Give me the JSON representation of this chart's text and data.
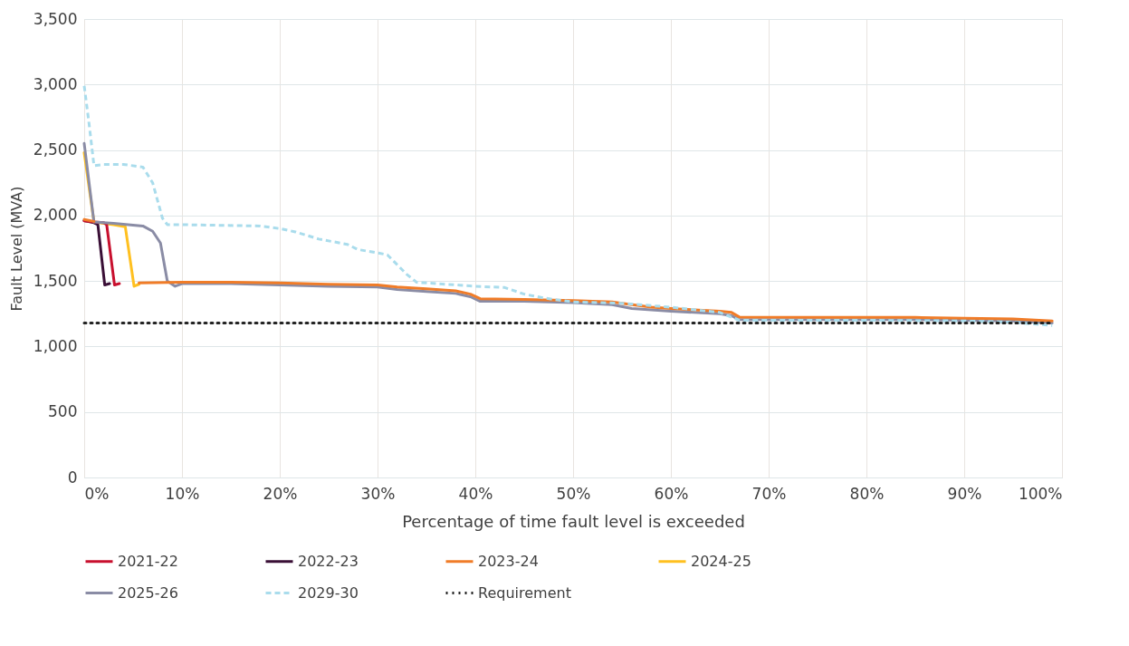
{
  "chart_data": {
    "type": "line",
    "xlabel": "Percentage of time fault level is exceeded",
    "ylabel": "Fault Level (MVA)",
    "xlim": [
      0,
      100
    ],
    "xticks": [
      {
        "value": 0,
        "label": "0%"
      },
      {
        "value": 10,
        "label": "10%"
      },
      {
        "value": 20,
        "label": "20%"
      },
      {
        "value": 30,
        "label": "30%"
      },
      {
        "value": 40,
        "label": "40%"
      },
      {
        "value": 50,
        "label": "50%"
      },
      {
        "value": 60,
        "label": "60%"
      },
      {
        "value": 70,
        "label": "70%"
      },
      {
        "value": 80,
        "label": "80%"
      },
      {
        "value": 90,
        "label": "90%"
      },
      {
        "value": 100,
        "label": "100%"
      }
    ],
    "ylim": [
      0,
      3500
    ],
    "yticks": [
      0,
      500,
      {
        "value": 1000,
        "label": "1,000"
      },
      {
        "value": 1500,
        "label": "1,500"
      },
      {
        "value": 2000,
        "label": "2,000"
      },
      {
        "value": 2500,
        "label": "2,500"
      },
      {
        "value": 3000,
        "label": "3,000"
      },
      {
        "value": 3500,
        "label": "3,500"
      }
    ],
    "grid": true,
    "legend": "bottom",
    "marker": "none",
    "series": [
      {
        "name": "2021-22",
        "color": "#c8102e",
        "line_style": "solid",
        "x": [
          0,
          1,
          2,
          2.3,
          3.1,
          3.6
        ],
        "values": [
          1960,
          1950,
          1945,
          1930,
          1470,
          1480
        ]
      },
      {
        "name": "2022-23",
        "color": "#3a0f36",
        "line_style": "solid",
        "x": [
          0,
          1,
          1.4,
          2.1,
          2.6
        ],
        "values": [
          1960,
          1945,
          1930,
          1470,
          1480
        ]
      },
      {
        "name": "2023-24",
        "color": "#f07c28",
        "line_style": "solid",
        "x": [
          0,
          1,
          3,
          4.2,
          5.1,
          5.6,
          10,
          15,
          20,
          25,
          30,
          32,
          35,
          38,
          39.5,
          40.5,
          45,
          50,
          54,
          56,
          58,
          60,
          65,
          66.2,
          67,
          75,
          85,
          90,
          95,
          99
        ],
        "values": [
          1970,
          1955,
          null,
          null,
          null,
          1485,
          1490,
          1490,
          1485,
          1475,
          1470,
          1455,
          1440,
          1425,
          1400,
          1365,
          1360,
          1350,
          1340,
          1320,
          1300,
          1290,
          1270,
          1260,
          1225,
          1222,
          1222,
          1215,
          1210,
          1195
        ]
      },
      {
        "name": "2024-25",
        "color": "#ffc020",
        "line_style": "solid",
        "x": [
          0,
          1,
          3,
          4.2,
          5.1,
          5.6
        ],
        "values": [
          2480,
          1950,
          1930,
          1915,
          1460,
          1475
        ]
      },
      {
        "name": "2025-26",
        "color": "#8a8ca5",
        "line_style": "solid",
        "x": [
          0,
          1,
          3,
          6,
          7,
          7.8,
          8.5,
          9.3,
          10,
          15,
          20,
          25,
          30,
          32,
          35,
          38,
          39.5,
          40.5,
          45,
          50,
          54,
          56,
          58,
          60,
          65,
          66.2,
          67,
          75,
          85,
          90,
          95,
          99
        ],
        "values": [
          2550,
          1950,
          1940,
          1920,
          1880,
          1790,
          1500,
          1460,
          1480,
          1480,
          1470,
          1460,
          1455,
          1435,
          1420,
          1405,
          1380,
          1345,
          1345,
          1335,
          1320,
          1290,
          1280,
          1270,
          1250,
          1235,
          1205,
          1205,
          1205,
          1200,
          1195,
          1180
        ]
      },
      {
        "name": "2029-30",
        "color": "#a9dcec",
        "line_style": "dashed",
        "x": [
          0,
          0.5,
          1,
          2,
          4,
          6,
          7,
          8,
          8.5,
          10,
          18,
          20,
          21.6,
          24,
          26.9,
          28,
          30,
          31,
          33,
          34,
          36,
          40,
          43,
          45,
          47,
          50,
          55,
          60,
          65,
          67,
          80,
          90,
          95,
          99
        ],
        "values": [
          2990,
          2700,
          2380,
          2390,
          2390,
          2370,
          2250,
          1980,
          1930,
          1930,
          1920,
          1900,
          1875,
          1820,
          1780,
          1740,
          1715,
          1700,
          1550,
          1490,
          1480,
          1460,
          1450,
          1400,
          1370,
          1340,
          1330,
          1300,
          1260,
          1200,
          1200,
          1195,
          1185,
          1160
        ]
      },
      {
        "name": "Requirement",
        "color": "#222222",
        "line_style": "dotted",
        "x": [
          0,
          99
        ],
        "values": [
          1180,
          1180
        ]
      }
    ]
  }
}
